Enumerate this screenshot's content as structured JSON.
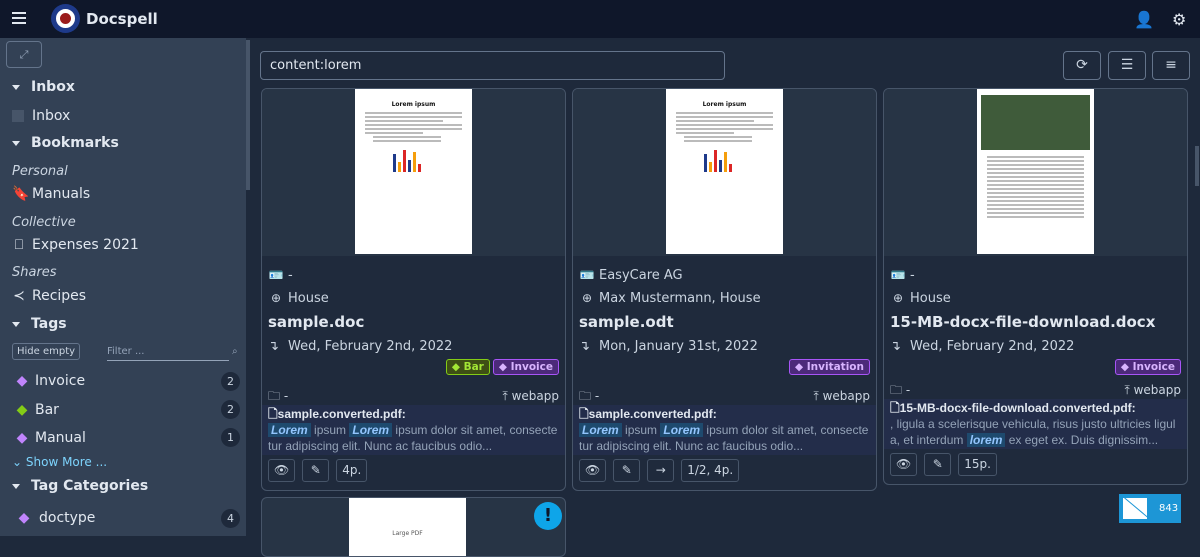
{
  "app": {
    "title": "Docspell"
  },
  "sidebar": {
    "inbox_header": "Inbox",
    "inbox_item": "Inbox",
    "bookmarks_header": "Bookmarks",
    "personal_label": "Personal",
    "personal_item": "Manuals",
    "collective_label": "Collective",
    "collective_item": "Expenses 2021",
    "shares_label": "Shares",
    "shares_item": "Recipes",
    "tags_header": "Tags",
    "hide_empty": "Hide empty",
    "filter_placeholder": "Filter ...",
    "tags": [
      {
        "label": "Invoice",
        "count": "2",
        "color": "#c084fc"
      },
      {
        "label": "Bar",
        "count": "2",
        "color": "#84cc16"
      },
      {
        "label": "Manual",
        "count": "1",
        "color": "#c084fc"
      }
    ],
    "show_more": "Show More ...",
    "tag_categories_header": "Tag Categories",
    "categories": [
      {
        "label": "doctype",
        "count": "4"
      }
    ]
  },
  "search": {
    "value": "content:lorem"
  },
  "cards": [
    {
      "correspondent": "-",
      "concerning": "House",
      "title": "sample.doc",
      "date": "Wed, February 2nd, 2022",
      "tags": [
        "Bar",
        "Invoice"
      ],
      "folder": "-",
      "source": "webapp",
      "snippet_file": "sample.converted.pdf:",
      "snippet_hl1": "Lorem",
      "snippet_t1": " ipsum ",
      "snippet_hl2": "Lorem",
      "snippet_t2": " ipsum dolor sit amet, consectetur adipiscing elit. Nunc ac faucibus odio...",
      "pages": "4p.",
      "thumb_title": "Lorem ipsum"
    },
    {
      "correspondent": "EasyCare AG",
      "concerning": "Max Mustermann, House",
      "title": "sample.odt",
      "date": "Mon, January 31st, 2022",
      "tags": [
        "Invitation"
      ],
      "folder": "-",
      "source": "webapp",
      "snippet_file": "sample.converted.pdf:",
      "snippet_hl1": "Lorem",
      "snippet_t1": " ipsum ",
      "snippet_hl2": "Lorem",
      "snippet_t2": " ipsum dolor sit amet, consectetur adipiscing elit. Nunc ac faucibus odio...",
      "pages": "1/2, 4p.",
      "thumb_title": "Lorem ipsum"
    },
    {
      "correspondent": "-",
      "concerning": "House",
      "title": "15-MB-docx-file-download.docx",
      "date": "Wed, February 2nd, 2022",
      "tags": [
        "Invoice"
      ],
      "folder": "-",
      "source": "webapp",
      "snippet_file": "15-MB-docx-file-download.converted.pdf:",
      "snippet_t0": ", ligula a scelerisque vehicula, risus justo ultricies ligula, et interdum ",
      "snippet_hl1": "lorem",
      "snippet_t1": " ex eget ex. Duis dignissim...",
      "pages": "15p."
    }
  ],
  "card4": {
    "thumb_title": "Large PDF"
  },
  "badge": {
    "count": "843"
  }
}
